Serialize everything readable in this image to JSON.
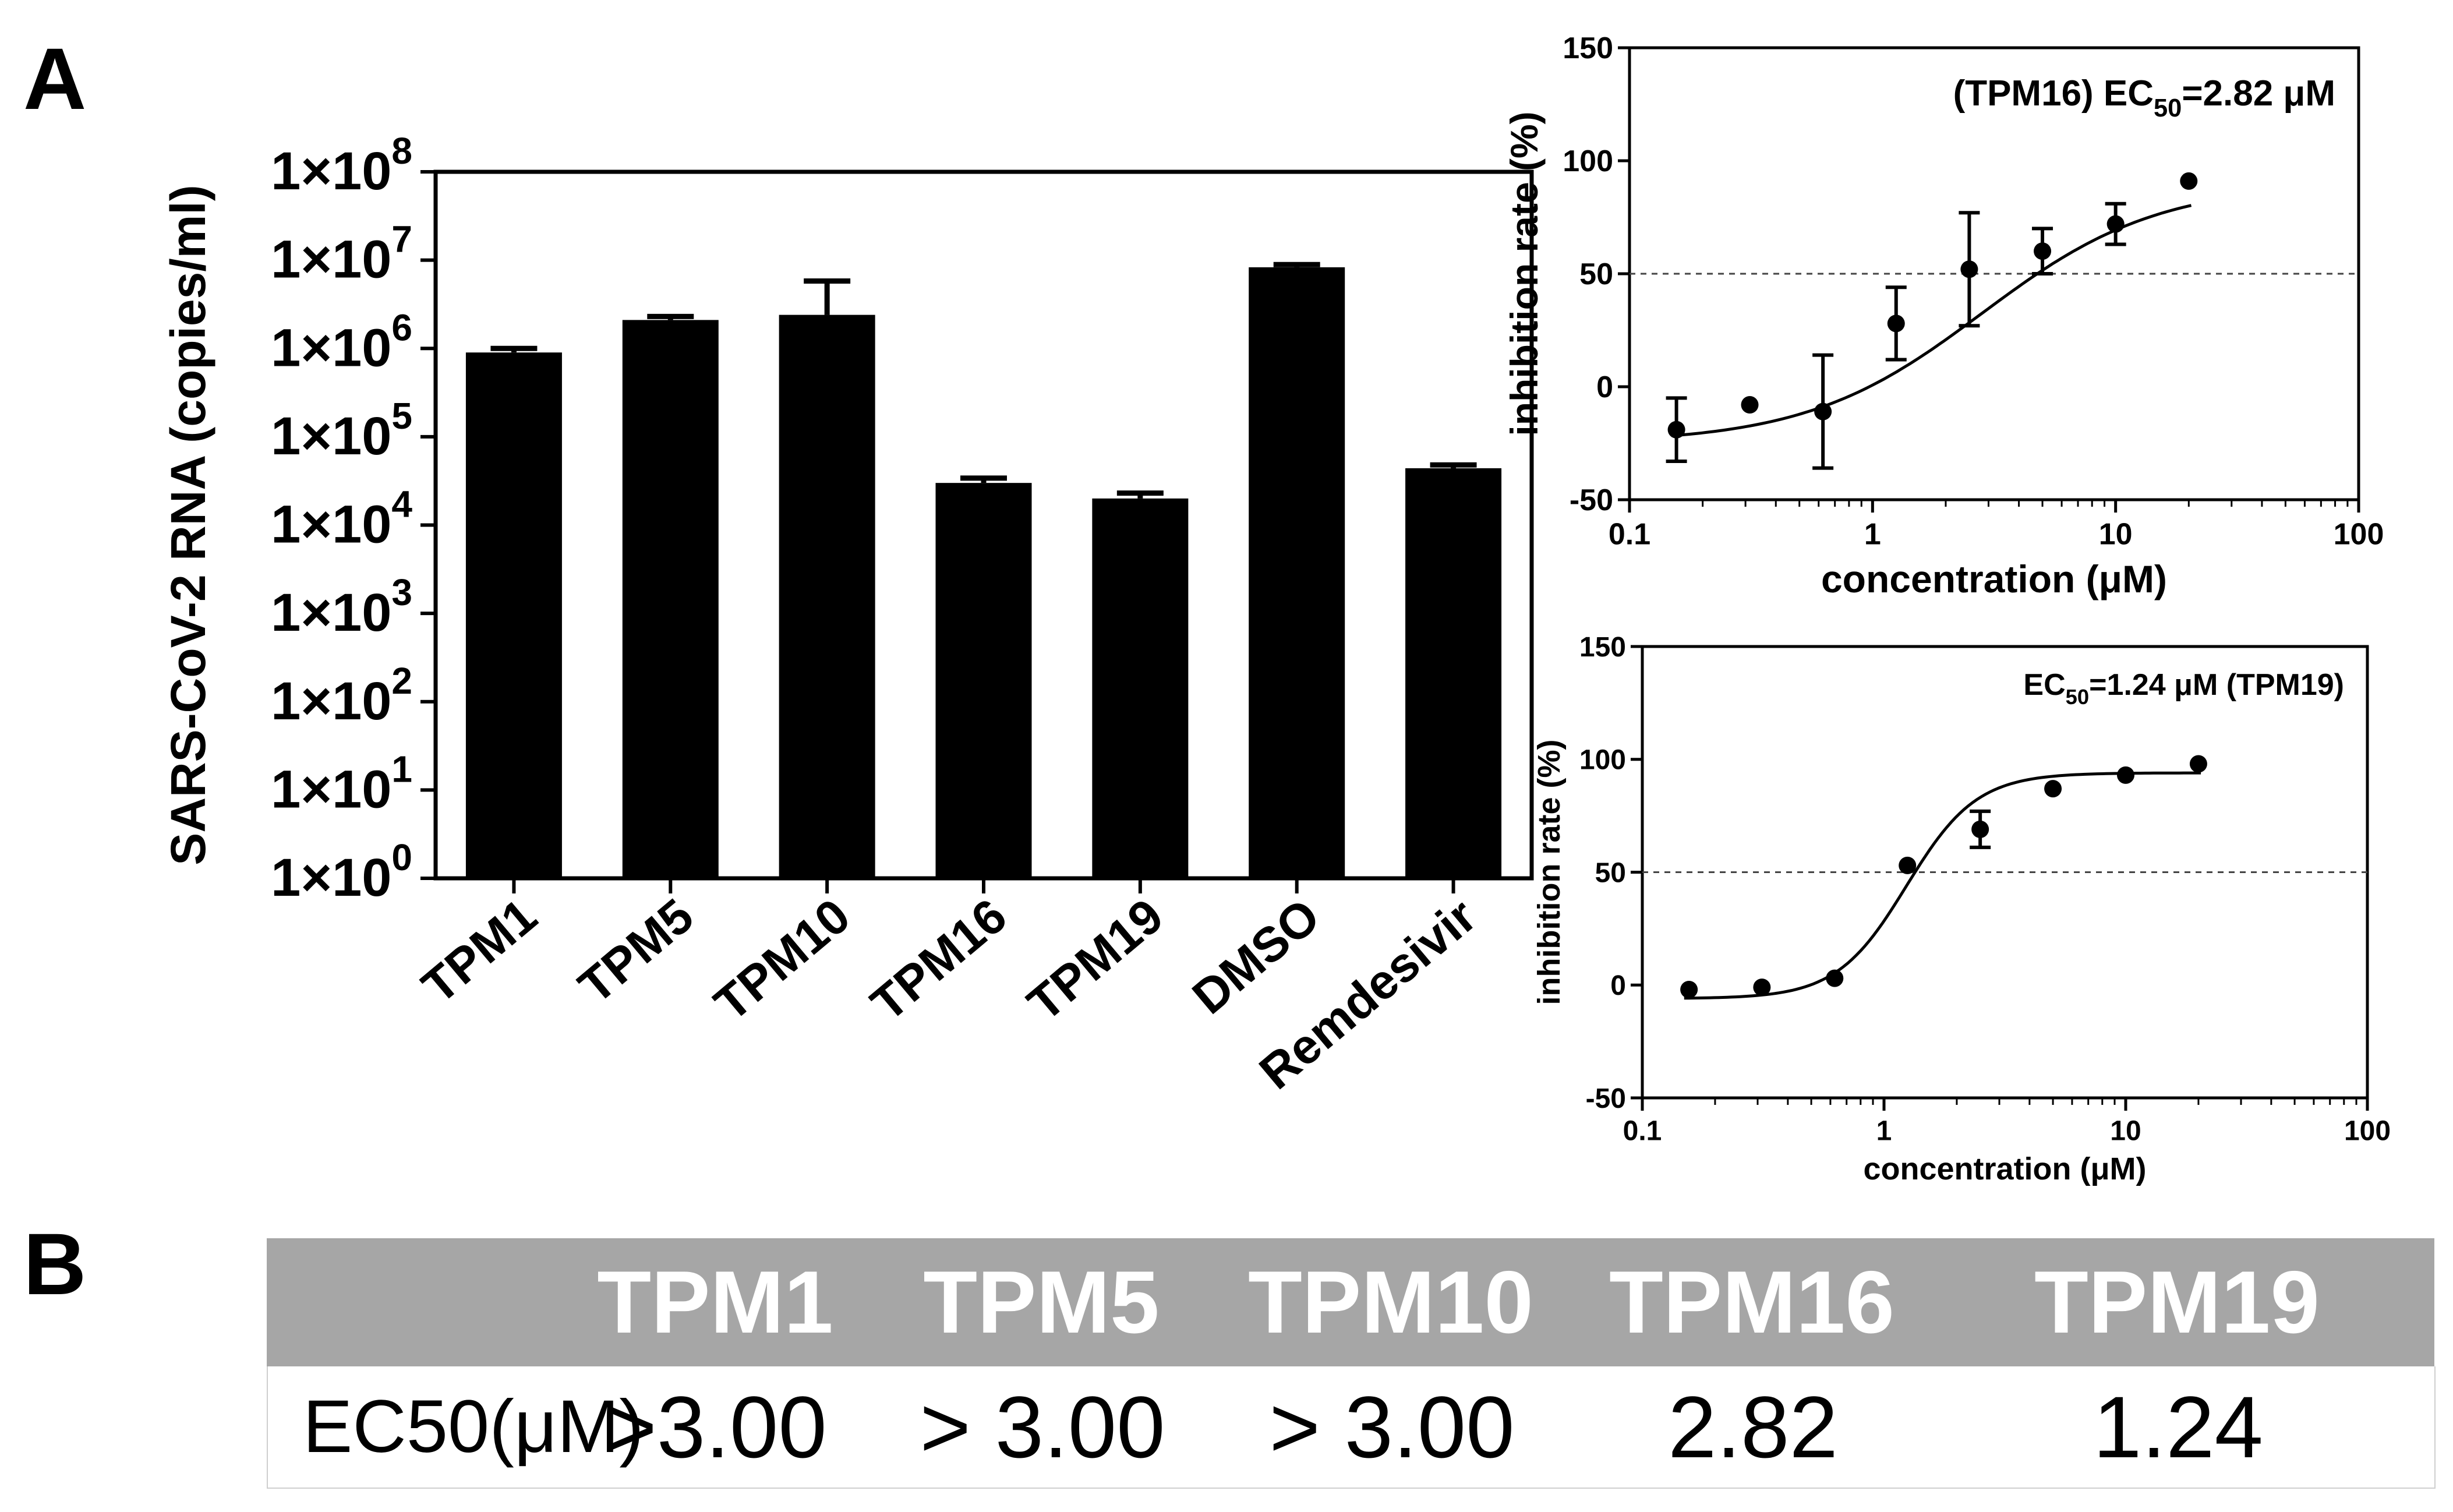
{
  "panel_labels": {
    "a": "A",
    "b": "B"
  },
  "chart_data": [
    {
      "id": "bar",
      "type": "bar",
      "ylabel": "SARS-CoV-2 RNA (copies/ml)",
      "yscale": "log10",
      "ylim": [
        1,
        100000000
      ],
      "yticks": [
        {
          "exp": "0",
          "value": 1
        },
        {
          "exp": "1",
          "value": 10
        },
        {
          "exp": "2",
          "value": 100
        },
        {
          "exp": "3",
          "value": 1000
        },
        {
          "exp": "4",
          "value": 10000
        },
        {
          "exp": "5",
          "value": 100000
        },
        {
          "exp": "6",
          "value": 1000000
        },
        {
          "exp": "7",
          "value": 10000000
        },
        {
          "exp": "8",
          "value": 100000000
        }
      ],
      "tick_base": "1×10",
      "categories": [
        "TPM1",
        "TPM5",
        "TPM10",
        "TPM16",
        "TPM19",
        "DMSO",
        "Remdesivir"
      ],
      "values": [
        900000,
        2100000,
        2400000,
        30000,
        20000,
        8300000,
        44000
      ],
      "error_upper": [
        1000000,
        2300000,
        5800000,
        34000,
        23000,
        8900000,
        48000
      ],
      "color": "#000000"
    },
    {
      "id": "tpm16",
      "type": "scatter",
      "annotation": {
        "prefix": "(TPM16) EC",
        "sub": "50",
        "suffix": "=2.82 μM"
      },
      "xlabel": "concentration (μM)",
      "ylabel": "inhibition rate (%)",
      "xscale": "log10",
      "xlim": [
        0.1,
        100
      ],
      "ylim": [
        -50,
        150
      ],
      "xticks": [
        {
          "label": "0.1",
          "value": 0.1
        },
        {
          "label": "1",
          "value": 1
        },
        {
          "label": "10",
          "value": 10
        },
        {
          "label": "100",
          "value": 100
        }
      ],
      "yticks": [
        {
          "label": "-50",
          "value": -50
        },
        {
          "label": "0",
          "value": 0
        },
        {
          "label": "50",
          "value": 50
        },
        {
          "label": "100",
          "value": 100
        },
        {
          "label": "150",
          "value": 150
        }
      ],
      "x": [
        0.156,
        0.3125,
        0.625,
        1.25,
        2.5,
        5,
        10,
        20
      ],
      "y": [
        -19,
        -8,
        -11,
        28,
        52,
        60,
        72,
        91
      ],
      "err": [
        14,
        0,
        25,
        16,
        25,
        10,
        9,
        0
      ],
      "reference_line": 50,
      "fit": {
        "bottom": -25,
        "top": 90,
        "ec50": 2.82,
        "hill": 1.2
      }
    },
    {
      "id": "tpm19",
      "type": "scatter",
      "annotation": {
        "prefix": "EC",
        "sub": "50",
        "suffix": "=1.24 μM (TPM19)"
      },
      "xlabel": "concentration (μM)",
      "ylabel": "inhibition rate (%)",
      "xscale": "log10",
      "xlim": [
        0.1,
        100
      ],
      "ylim": [
        -50,
        150
      ],
      "xticks": [
        {
          "label": "0.1",
          "value": 0.1
        },
        {
          "label": "1",
          "value": 1
        },
        {
          "label": "10",
          "value": 10
        },
        {
          "label": "100",
          "value": 100
        }
      ],
      "yticks": [
        {
          "label": "-50",
          "value": -50
        },
        {
          "label": "0",
          "value": 0
        },
        {
          "label": "50",
          "value": 50
        },
        {
          "label": "100",
          "value": 100
        },
        {
          "label": "150",
          "value": 150
        }
      ],
      "x": [
        0.156,
        0.3125,
        0.625,
        1.25,
        2.5,
        5,
        10,
        20
      ],
      "y": [
        -2,
        -1,
        3,
        53,
        69,
        87,
        93,
        98
      ],
      "err": [
        0,
        0,
        0,
        0,
        8,
        0,
        0,
        0
      ],
      "reference_line": 50,
      "fit": {
        "bottom": -6,
        "top": 94,
        "ec50": 1.24,
        "hill": 3.0
      }
    }
  ],
  "table": {
    "columns": [
      "TPM1",
      "TPM5",
      "TPM10",
      "TPM16",
      "TPM19"
    ],
    "row_label": "EC50(μM)",
    "values": [
      ">3.00",
      "> 3.00",
      "> 3.00",
      "2.82",
      "1.24"
    ],
    "header_color": "#a6a6a6"
  }
}
